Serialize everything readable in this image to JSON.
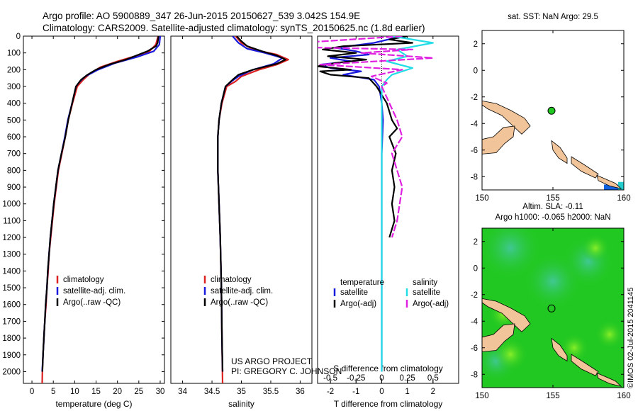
{
  "header": {
    "line1": "Argo profile: AO 5900889_347 26-Jun-2015 20150627_539 3.042S 154.9E",
    "line2": "Climatology: CARS2009. Satellite-adjusted climatology: synTS_20150625.nc (1.8d earlier)"
  },
  "side_label": "©IMOS 02-Jul-2015 2041145",
  "credit": {
    "line1": "US ARGO PROJECT",
    "line2": "PI: GREGORY C. JOHNSON"
  },
  "colors": {
    "climatology": "#dd2222",
    "satellite": "#1a1adc",
    "argo": "#000000",
    "salinity_sat": "#22dde6",
    "salinity_argo": "#e020e0",
    "land": "#f2c49a",
    "argo_dot": "#22c822",
    "sla_field": "#22c822"
  },
  "chart_data": [
    {
      "type": "line",
      "id": "temperature",
      "xlabel": "temperature (deg C)",
      "xlim": [
        -2,
        31
      ],
      "ylim": [
        2070,
        0
      ],
      "xticks": [
        0,
        5,
        10,
        15,
        20,
        25,
        30
      ],
      "yticks": [
        0,
        100,
        200,
        300,
        400,
        500,
        600,
        700,
        800,
        900,
        1000,
        1100,
        1200,
        1300,
        1400,
        1500,
        1600,
        1700,
        1800,
        1900,
        2000
      ],
      "legend": [
        "climatology",
        "satellite-adj. clim.",
        "Argo(..raw -QC)"
      ],
      "series": [
        {
          "name": "climatology",
          "color": "climatology",
          "points": [
            [
              29.5,
              0
            ],
            [
              29.0,
              50
            ],
            [
              27.5,
              90
            ],
            [
              24,
              120
            ],
            [
              20,
              150
            ],
            [
              16,
              185
            ],
            [
              13.5,
              225
            ],
            [
              12,
              260
            ],
            [
              10.6,
              300
            ],
            [
              9.5,
              400
            ],
            [
              8.5,
              500
            ],
            [
              7.8,
              600
            ],
            [
              7.0,
              700
            ],
            [
              6.2,
              800
            ],
            [
              5.7,
              900
            ],
            [
              5.2,
              1000
            ],
            [
              4.8,
              1100
            ],
            [
              4.4,
              1200
            ],
            [
              4.0,
              1300
            ],
            [
              3.8,
              1400
            ],
            [
              3.5,
              1500
            ],
            [
              3.3,
              1600
            ],
            [
              3.0,
              1700
            ],
            [
              2.8,
              1800
            ],
            [
              2.6,
              1900
            ],
            [
              2.45,
              2000
            ],
            [
              2.4,
              2070
            ]
          ]
        },
        {
          "name": "satellite-adj. clim.",
          "color": "satellite",
          "points": [
            [
              30,
              0
            ],
            [
              29.8,
              50
            ],
            [
              28.5,
              90
            ],
            [
              24.5,
              125
            ],
            [
              19.5,
              160
            ],
            [
              15.5,
              200
            ],
            [
              12.5,
              240
            ],
            [
              11.2,
              270
            ],
            [
              10.3,
              300
            ],
            [
              9.4,
              400
            ],
            [
              8.4,
              500
            ],
            [
              7.7,
              600
            ],
            [
              6.9,
              700
            ],
            [
              6.1,
              800
            ],
            [
              5.6,
              900
            ],
            [
              5.1,
              1000
            ],
            [
              4.7,
              1100
            ],
            [
              4.3,
              1200
            ],
            [
              4.0,
              1300
            ],
            [
              3.7,
              1400
            ],
            [
              3.5,
              1500
            ],
            [
              3.2,
              1600
            ],
            [
              3.0,
              1700
            ],
            [
              2.8,
              1800
            ],
            [
              2.6,
              1900
            ],
            [
              2.4,
              2000
            ]
          ]
        },
        {
          "name": "Argo(..raw -QC)",
          "color": "argo",
          "points": [
            [
              29.6,
              0
            ],
            [
              29.4,
              40
            ],
            [
              29.0,
              60
            ],
            [
              27,
              90
            ],
            [
              25,
              110
            ],
            [
              22,
              140
            ],
            [
              18,
              170
            ],
            [
              15,
              200
            ],
            [
              13,
              230
            ],
            [
              11.5,
              260
            ],
            [
              10.3,
              300
            ],
            [
              9.4,
              400
            ],
            [
              8.5,
              500
            ],
            [
              7.8,
              600
            ],
            [
              6.9,
              700
            ],
            [
              6.1,
              800
            ],
            [
              5.6,
              900
            ],
            [
              5.1,
              1000
            ],
            [
              4.7,
              1100
            ],
            [
              4.3,
              1200
            ],
            [
              4.0,
              1300
            ],
            [
              3.7,
              1400
            ],
            [
              3.5,
              1500
            ],
            [
              3.2,
              1600
            ],
            [
              3.0,
              1700
            ],
            [
              2.8,
              1800
            ],
            [
              2.6,
              1900
            ],
            [
              2.45,
              2000
            ]
          ]
        }
      ]
    },
    {
      "type": "line",
      "id": "salinity",
      "xlabel": "salinity",
      "xlim": [
        33.8,
        36.2
      ],
      "ylim": [
        2070,
        0
      ],
      "xticks": [
        34,
        34.5,
        35,
        35.5,
        36
      ],
      "xticklabels": [
        "34",
        "34.5",
        "35",
        "35.5",
        "36"
      ],
      "legend": [
        "climatology",
        "satellite-adj. clim.",
        "Argo(..raw -QC)"
      ],
      "series": [
        {
          "name": "climatology",
          "color": "climatology",
          "points": [
            [
              34.9,
              0
            ],
            [
              35.0,
              40
            ],
            [
              35.2,
              80
            ],
            [
              35.6,
              110
            ],
            [
              35.8,
              140
            ],
            [
              35.6,
              170
            ],
            [
              35.3,
              200
            ],
            [
              35.0,
              240
            ],
            [
              34.9,
              270
            ],
            [
              34.75,
              300
            ],
            [
              34.67,
              400
            ],
            [
              34.62,
              500
            ],
            [
              34.6,
              600
            ],
            [
              34.6,
              800
            ],
            [
              34.62,
              1000
            ],
            [
              34.64,
              1200
            ],
            [
              34.66,
              1500
            ],
            [
              34.67,
              1800
            ],
            [
              34.68,
              2070
            ]
          ]
        },
        {
          "name": "satellite-adj. clim.",
          "color": "satellite",
          "points": [
            [
              34.85,
              0
            ],
            [
              34.95,
              40
            ],
            [
              35.1,
              75
            ],
            [
              35.4,
              100
            ],
            [
              35.7,
              130
            ],
            [
              35.55,
              165
            ],
            [
              35.2,
              200
            ],
            [
              34.95,
              240
            ],
            [
              34.85,
              265
            ],
            [
              34.73,
              300
            ],
            [
              34.66,
              400
            ],
            [
              34.62,
              500
            ],
            [
              34.6,
              600
            ],
            [
              34.6,
              800
            ],
            [
              34.62,
              1000
            ],
            [
              34.64,
              1200
            ],
            [
              34.66,
              1500
            ],
            [
              34.67,
              1800
            ],
            [
              34.68,
              2000
            ]
          ]
        },
        {
          "name": "Argo(..raw -QC)",
          "color": "argo",
          "points": [
            [
              34.92,
              0
            ],
            [
              35.0,
              30
            ],
            [
              35.1,
              60
            ],
            [
              35.35,
              90
            ],
            [
              35.6,
              115
            ],
            [
              35.75,
              140
            ],
            [
              35.6,
              165
            ],
            [
              35.2,
              200
            ],
            [
              34.95,
              230
            ],
            [
              34.85,
              260
            ],
            [
              34.73,
              300
            ],
            [
              34.66,
              400
            ],
            [
              34.62,
              500
            ],
            [
              34.6,
              600
            ],
            [
              34.6,
              800
            ],
            [
              34.62,
              1000
            ],
            [
              34.64,
              1200
            ],
            [
              34.66,
              1500
            ],
            [
              34.67,
              1800
            ],
            [
              34.68,
              2000
            ]
          ]
        }
      ]
    },
    {
      "type": "line",
      "id": "difference",
      "xlabel": "T difference from climatology",
      "xlabel_top": "S difference from climatology",
      "xlim": [
        -2.5,
        3
      ],
      "ylim": [
        2070,
        0
      ],
      "xticks": [
        -2,
        -1,
        0,
        1,
        2
      ],
      "top_ticks": [
        -0.5,
        -0.25,
        0,
        0.25,
        0.5
      ],
      "top_ticklabels": [
        "-0.5",
        "-0.25",
        "0",
        "0.25",
        "0.5"
      ],
      "legend_titles": [
        "temperature",
        "salinity"
      ],
      "legend": [
        "satellite",
        "Argo(-adj)",
        "satellite",
        "Argo(-adj)"
      ],
      "series": [
        {
          "name": "satellite",
          "group": "temperature",
          "color": "satellite",
          "points": [
            [
              0.8,
              0
            ],
            [
              -0.3,
              40
            ],
            [
              -1.8,
              70
            ],
            [
              -1.0,
              90
            ],
            [
              -0.5,
              110
            ],
            [
              -2.0,
              130
            ],
            [
              -1.2,
              150
            ],
            [
              -2.4,
              170
            ],
            [
              -2.0,
              190
            ],
            [
              -0.8,
              210
            ],
            [
              -1.5,
              230
            ],
            [
              -0.3,
              260
            ],
            [
              -0.1,
              300
            ],
            [
              0,
              400
            ],
            [
              0.05,
              500
            ],
            [
              0,
              700
            ],
            [
              0,
              1000
            ],
            [
              0,
              1500
            ],
            [
              0,
              2000
            ]
          ]
        },
        {
          "name": "Argo(-adj)",
          "group": "temperature",
          "color": "argo",
          "points": [
            [
              1.0,
              0
            ],
            [
              0.3,
              20
            ],
            [
              1.2,
              40
            ],
            [
              -1.5,
              60
            ],
            [
              -2.3,
              80
            ],
            [
              -1.0,
              100
            ],
            [
              -2.1,
              120
            ],
            [
              -0.6,
              140
            ],
            [
              -1.8,
              160
            ],
            [
              -2.5,
              180
            ],
            [
              -1.2,
              200
            ],
            [
              -2.4,
              210
            ],
            [
              -2.0,
              230
            ],
            [
              -0.5,
              250
            ],
            [
              -0.2,
              300
            ],
            [
              0.2,
              400
            ],
            [
              0.4,
              500
            ],
            [
              0.6,
              550
            ],
            [
              0.3,
              600
            ],
            [
              0.55,
              700
            ],
            [
              0.4,
              800
            ],
            [
              0.5,
              900
            ],
            [
              0.4,
              1000
            ],
            [
              0.5,
              1100
            ],
            [
              0.3,
              1200
            ]
          ]
        },
        {
          "name": "satellite",
          "group": "salinity",
          "color": "salinity_sat",
          "points": [
            [
              0.1,
              0
            ],
            [
              0.5,
              40
            ],
            [
              0.15,
              80
            ],
            [
              0.25,
              120
            ],
            [
              0.05,
              150
            ],
            [
              0.3,
              190
            ],
            [
              0.1,
              230
            ],
            [
              0.05,
              260
            ],
            [
              0,
              300
            ],
            [
              0,
              1000
            ],
            [
              0,
              2000
            ]
          ]
        },
        {
          "name": "Argo(-adj)",
          "group": "salinity",
          "color": "salinity_argo",
          "points": [
            [
              0.2,
              0
            ],
            [
              -1.3,
              60
            ],
            [
              0.3,
              80
            ],
            [
              -0.2,
              100
            ],
            [
              0.5,
              130
            ],
            [
              -0.6,
              170
            ],
            [
              0.2,
              200
            ],
            [
              -0.1,
              240
            ],
            [
              0.05,
              280
            ],
            [
              0,
              300
            ],
            [
              0.15,
              500
            ],
            [
              0.2,
              600
            ],
            [
              0.1,
              700
            ],
            [
              0.15,
              800
            ],
            [
              0.2,
              900
            ],
            [
              0.15,
              1100
            ],
            [
              0.1,
              1200
            ]
          ]
        }
      ]
    },
    {
      "type": "map",
      "id": "sst_map",
      "title": "sat. SST: NaN Argo: 29.5",
      "xlim": [
        150,
        160
      ],
      "ylim": [
        -9,
        3
      ],
      "xticks": [
        150,
        155,
        160
      ],
      "yticks": [
        2,
        0,
        -2,
        -4,
        -6,
        -8
      ],
      "argo_position": [
        154.9,
        -3.042
      ]
    },
    {
      "type": "map",
      "id": "sla_map",
      "title": "Altim. SLA: -0.11",
      "subtitle": "Argo h1000: -0.065 h2000: NaN",
      "xlim": [
        150,
        160
      ],
      "ylim": [
        -9,
        3
      ],
      "xticks": [
        150,
        155,
        160
      ],
      "yticks": [
        2,
        0,
        -2,
        -4,
        -6,
        -8
      ],
      "argo_position": [
        154.9,
        -3.042
      ]
    }
  ]
}
